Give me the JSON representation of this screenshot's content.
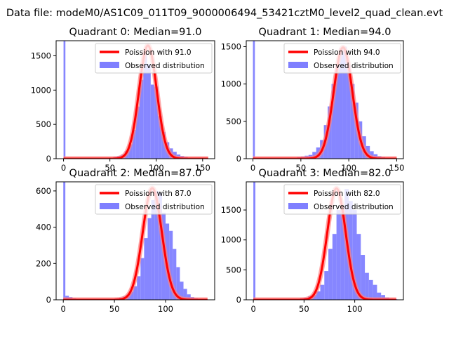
{
  "suptitle": "Data file: modeM0/AS1C09_011T09_9000006494_53421cztM0_level2_quad_clean.evt",
  "colors": {
    "hist": "#7f7fff",
    "fit": "#ff0000",
    "fit_glow": "#ff8080"
  },
  "chart_data": [
    {
      "type": "histogram",
      "title": "Quadrant 0: Median=91.0",
      "median": 91.0,
      "legend": {
        "fit_label": "Poission with 91.0",
        "hist_label": "Observed distribution",
        "position": "top-right"
      },
      "xlim": [
        -8,
        163
      ],
      "ylim": [
        0,
        1720
      ],
      "xticks": [
        0,
        50,
        100,
        150
      ],
      "yticks": [
        0,
        500,
        1000,
        1500
      ],
      "bin_width": 4,
      "bin_start": 2,
      "bin_heights_start_x": 30,
      "zero_bin": {
        "x0": 0,
        "x1": 2,
        "height": 2400
      },
      "bin_heights": [
        5,
        3,
        5,
        4,
        5,
        10,
        25,
        40,
        60,
        110,
        210,
        420,
        760,
        1150,
        1550,
        1380,
        1080,
        1050,
        620,
        390,
        240,
        150,
        100,
        60,
        40,
        25,
        15,
        8,
        4,
        2,
        1,
        1
      ],
      "fit_peak": 1650,
      "fit_x_range": [
        0,
        156
      ]
    },
    {
      "type": "histogram",
      "title": "Quadrant 1: Median=94.0",
      "median": 94.0,
      "legend": {
        "fit_label": "Poission with 94.0",
        "hist_label": "Observed distribution",
        "position": "top-right"
      },
      "xlim": [
        -7,
        157
      ],
      "ylim": [
        0,
        1580
      ],
      "xticks": [
        0,
        50,
        100,
        150
      ],
      "yticks": [
        0,
        500,
        1000,
        1500
      ],
      "bin_width": 4,
      "bin_start": 2,
      "bin_heights_start_x": 30,
      "zero_bin": {
        "x0": 0,
        "x1": 2,
        "height": 2400
      },
      "bin_heights": [
        5,
        5,
        5,
        10,
        20,
        30,
        40,
        50,
        90,
        150,
        250,
        450,
        700,
        1000,
        1250,
        1480,
        1500,
        1250,
        1000,
        750,
        500,
        300,
        170,
        100,
        60,
        35,
        20,
        10,
        5,
        3
      ],
      "fit_peak": 1490,
      "fit_x_range": [
        0,
        150
      ]
    },
    {
      "type": "histogram",
      "title": "Quadrant 2: Median=87.0",
      "median": 87.0,
      "legend": {
        "fit_label": "Poission with 87.0",
        "hist_label": "Observed distribution",
        "position": "top-right"
      },
      "xlim": [
        -7,
        148
      ],
      "ylim": [
        0,
        650
      ],
      "xticks": [
        0,
        50,
        100
      ],
      "yticks": [
        0,
        200,
        400,
        600
      ],
      "bin_width": 3.5,
      "bin_start": 2,
      "bin_heights_start_x": 30,
      "zero_bin": {
        "x0": 0,
        "x1": 2,
        "height": 900
      },
      "bin_heights": [
        2,
        2,
        2,
        3,
        3,
        5,
        8,
        12,
        18,
        28,
        45,
        75,
        130,
        230,
        340,
        450,
        550,
        600,
        590,
        480,
        420,
        380,
        280,
        180,
        100,
        60,
        30,
        15,
        8,
        4,
        2,
        1
      ],
      "fit_peak": 615,
      "fit_x_range": [
        0,
        141
      ],
      "extra_bins": [
        [
          2,
          5.5,
          22
        ],
        [
          5.5,
          9,
          15
        ],
        [
          9,
          12.5,
          8
        ],
        [
          12.5,
          16,
          5
        ]
      ]
    },
    {
      "type": "histogram",
      "title": "Quadrant 3: Median=82.0",
      "median": 82.0,
      "legend": {
        "fit_label": "Poission with 82.0",
        "hist_label": "Observed distribution",
        "position": "top-right"
      },
      "xlim": [
        -7,
        148
      ],
      "ylim": [
        0,
        1970
      ],
      "xticks": [
        0,
        50,
        100
      ],
      "yticks": [
        0,
        500,
        1000,
        1500
      ],
      "bin_width": 4,
      "bin_start": 2,
      "bin_heights_start_x": 30,
      "zero_bin": {
        "x0": 0,
        "x1": 2,
        "height": 2600
      },
      "bin_heights": [
        5,
        5,
        10,
        15,
        25,
        35,
        60,
        80,
        140,
        250,
        480,
        850,
        1100,
        1500,
        1550,
        1850,
        1650,
        1500,
        1100,
        750,
        450,
        330,
        250,
        120,
        80,
        40,
        20,
        10,
        5,
        2
      ],
      "fit_peak": 1860,
      "fit_x_range": [
        0,
        141
      ]
    }
  ]
}
